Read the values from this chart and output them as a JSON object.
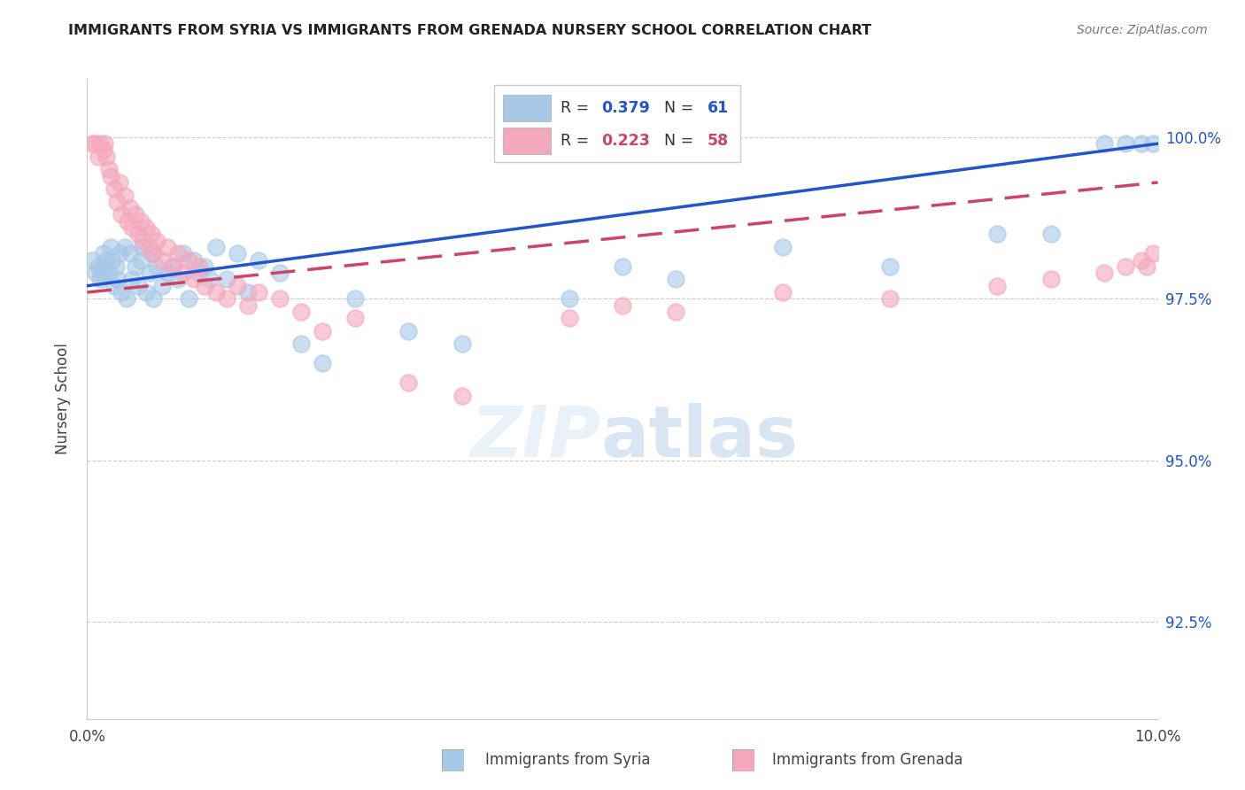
{
  "title": "IMMIGRANTS FROM SYRIA VS IMMIGRANTS FROM GRENADA NURSERY SCHOOL CORRELATION CHART",
  "source": "Source: ZipAtlas.com",
  "ylabel": "Nursery School",
  "ytick_values": [
    92.5,
    95.0,
    97.5,
    100.0
  ],
  "ylim": [
    91.0,
    100.9
  ],
  "xlim": [
    0.0,
    10.0
  ],
  "syria_R": "0.379",
  "syria_N": "61",
  "grenada_R": "0.223",
  "grenada_N": "58",
  "syria_color": "#A8C8E8",
  "grenada_color": "#F4A8BC",
  "syria_line_color": "#2255CC",
  "grenada_line_color": "#CC4466",
  "legend_label_syria": "Immigrants from Syria",
  "legend_label_grenada": "Immigrants from Grenada",
  "syria_x": [
    0.05,
    0.08,
    0.1,
    0.12,
    0.14,
    0.15,
    0.16,
    0.18,
    0.2,
    0.22,
    0.24,
    0.25,
    0.27,
    0.28,
    0.3,
    0.32,
    0.35,
    0.37,
    0.4,
    0.42,
    0.45,
    0.48,
    0.5,
    0.52,
    0.55,
    0.58,
    0.6,
    0.62,
    0.65,
    0.7,
    0.75,
    0.8,
    0.85,
    0.9,
    0.95,
    1.0,
    1.05,
    1.1,
    1.15,
    1.2,
    1.3,
    1.4,
    1.5,
    1.6,
    1.8,
    2.0,
    2.2,
    2.5,
    3.0,
    3.5,
    4.5,
    5.0,
    5.5,
    6.5,
    7.5,
    8.5,
    9.0,
    9.5,
    9.7,
    9.85,
    9.95
  ],
  "syria_y": [
    98.1,
    97.9,
    98.0,
    97.8,
    97.9,
    98.2,
    98.0,
    98.1,
    97.9,
    98.3,
    98.1,
    97.7,
    98.0,
    97.8,
    98.2,
    97.6,
    98.3,
    97.5,
    98.2,
    97.8,
    98.0,
    97.7,
    98.1,
    98.3,
    97.6,
    97.9,
    98.2,
    97.5,
    98.0,
    97.7,
    97.9,
    98.0,
    97.8,
    98.2,
    97.5,
    98.1,
    97.9,
    98.0,
    97.8,
    98.3,
    97.8,
    98.2,
    97.6,
    98.1,
    97.9,
    96.8,
    96.5,
    97.5,
    97.0,
    96.8,
    97.5,
    98.0,
    97.8,
    98.3,
    98.0,
    98.5,
    98.5,
    99.9,
    99.9,
    99.9,
    99.9
  ],
  "grenada_x": [
    0.05,
    0.08,
    0.1,
    0.12,
    0.15,
    0.16,
    0.18,
    0.2,
    0.22,
    0.25,
    0.28,
    0.3,
    0.32,
    0.35,
    0.38,
    0.4,
    0.42,
    0.45,
    0.48,
    0.5,
    0.52,
    0.55,
    0.58,
    0.6,
    0.62,
    0.65,
    0.7,
    0.75,
    0.8,
    0.85,
    0.9,
    0.95,
    1.0,
    1.05,
    1.1,
    1.2,
    1.3,
    1.4,
    1.5,
    1.6,
    1.8,
    2.0,
    2.2,
    2.5,
    3.0,
    3.5,
    4.5,
    5.0,
    5.5,
    6.5,
    7.5,
    8.5,
    9.0,
    9.5,
    9.7,
    9.85,
    9.9,
    9.95
  ],
  "grenada_y": [
    99.9,
    99.9,
    99.7,
    99.9,
    99.8,
    99.9,
    99.7,
    99.5,
    99.4,
    99.2,
    99.0,
    99.3,
    98.8,
    99.1,
    98.7,
    98.9,
    98.6,
    98.8,
    98.5,
    98.7,
    98.4,
    98.6,
    98.3,
    98.5,
    98.2,
    98.4,
    98.1,
    98.3,
    98.0,
    98.2,
    97.9,
    98.1,
    97.8,
    98.0,
    97.7,
    97.6,
    97.5,
    97.7,
    97.4,
    97.6,
    97.5,
    97.3,
    97.0,
    97.2,
    96.2,
    96.0,
    97.2,
    97.4,
    97.3,
    97.6,
    97.5,
    97.7,
    97.8,
    97.9,
    98.0,
    98.1,
    98.0,
    98.2
  ]
}
